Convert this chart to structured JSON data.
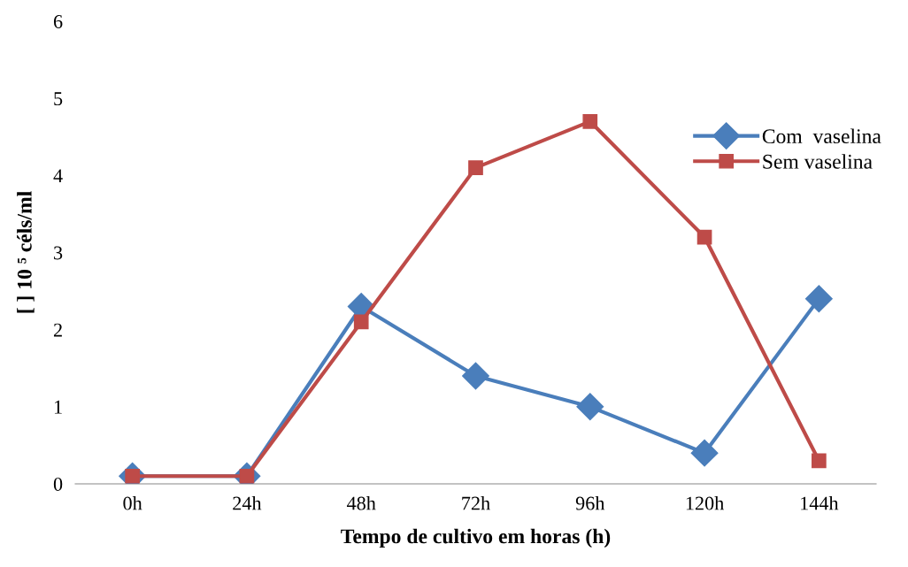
{
  "chart_data": {
    "type": "line",
    "xlabel": "Tempo de cultivo em horas (h)",
    "ylabel": "[ ] 10 ⁵ céls/ml",
    "categories": [
      "0h",
      "24h",
      "48h",
      "72h",
      "96h",
      "120h",
      "144h"
    ],
    "series": [
      {
        "name": "Com  vaselina",
        "color": "#4a7ebb",
        "marker": "diamond",
        "values": [
          0.1,
          0.1,
          2.3,
          1.4,
          1.0,
          0.4,
          2.4
        ]
      },
      {
        "name": "Sem vaselina",
        "color": "#be4b48",
        "marker": "square",
        "values": [
          0.1,
          0.1,
          2.1,
          4.1,
          4.7,
          3.2,
          0.3
        ]
      }
    ],
    "ylim": [
      0,
      6
    ],
    "yticks": [
      0,
      1,
      2,
      3,
      4,
      5,
      6
    ],
    "grid": false,
    "legend": "right",
    "line_style": "solid"
  }
}
